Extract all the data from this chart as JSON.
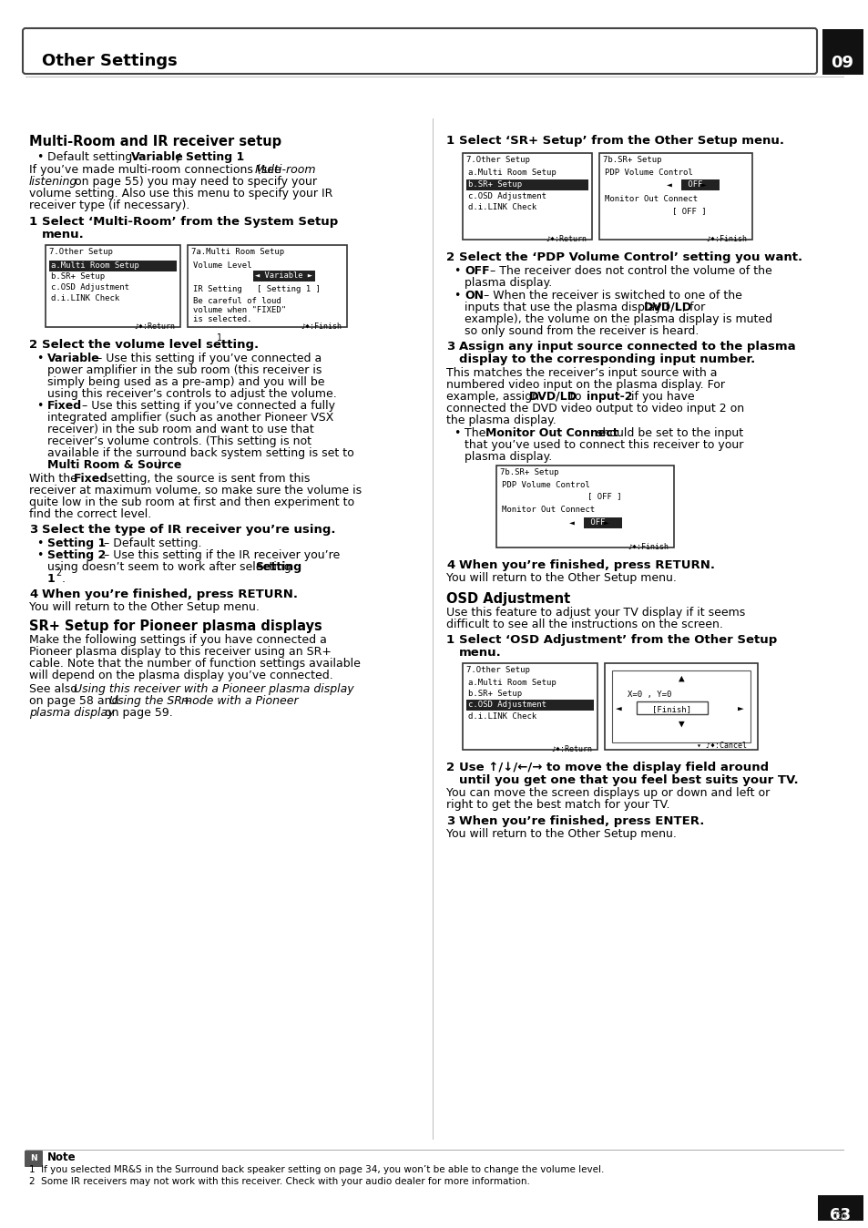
{
  "page_bg": "#ffffff",
  "header_title": "Other Settings",
  "header_number": "09",
  "page_num": "63",
  "page_lang": "En",
  "note1": "1  If you selected MR&S in the Surround back speaker setting on page 34, you won’t be able to change the volume level.",
  "note2": "2  Some IR receivers may not work with this receiver. Check with your audio dealer for more information."
}
